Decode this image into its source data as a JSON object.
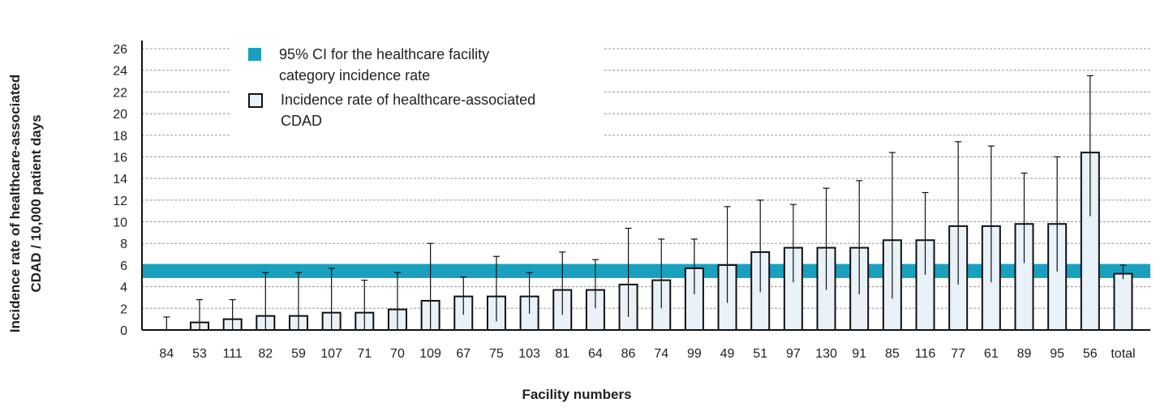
{
  "chart_data": {
    "type": "bar",
    "xlabel": "Facility numbers",
    "ylabel": [
      "Incidence rate of healthcare-associated",
      "CDAD / 10,000 patient days"
    ],
    "categories": [
      "84",
      "53",
      "111",
      "82",
      "59",
      "107",
      "71",
      "70",
      "109",
      "67",
      "75",
      "103",
      "81",
      "64",
      "86",
      "74",
      "99",
      "49",
      "51",
      "97",
      "130",
      "91",
      "85",
      "116",
      "77",
      "61",
      "89",
      "95",
      "56",
      "total"
    ],
    "series": [
      {
        "name": "Incidence rate of healthcare-associated CDAD",
        "color": "#e9f2f9",
        "values": [
          0,
          0.7,
          1.0,
          1.3,
          1.3,
          1.6,
          1.6,
          1.9,
          2.7,
          3.1,
          3.1,
          3.1,
          3.7,
          3.7,
          4.2,
          4.6,
          5.7,
          6.0,
          7.2,
          7.6,
          7.6,
          7.6,
          8.3,
          8.3,
          9.6,
          9.6,
          9.8,
          9.8,
          16.4,
          5.2
        ],
        "ci_low": [
          0,
          0,
          0,
          0,
          0,
          0,
          0,
          0,
          0,
          1.4,
          0.8,
          1.5,
          1.4,
          2.0,
          1.2,
          2.0,
          3.3,
          2.5,
          3.5,
          4.4,
          3.7,
          3.3,
          2.9,
          5.1,
          4.2,
          4.4,
          6.2,
          5.4,
          10.5,
          4.7
        ],
        "ci_high": [
          1.2,
          2.8,
          2.8,
          5.3,
          5.3,
          5.7,
          4.6,
          5.3,
          8.0,
          4.9,
          6.8,
          5.3,
          7.2,
          6.5,
          9.4,
          8.4,
          8.4,
          11.4,
          12.0,
          11.6,
          13.1,
          13.8,
          16.4,
          12.7,
          17.4,
          17.0,
          14.5,
          16.0,
          23.5,
          6.0
        ]
      }
    ],
    "band": {
      "name": "95% CI for the healthcare facility category incidence rate",
      "color": "#1aa0bf",
      "range": [
        4.8,
        6.1
      ]
    },
    "ylim": [
      0,
      26
    ],
    "yticks": [
      0,
      2,
      4,
      6,
      8,
      10,
      12,
      14,
      16,
      18,
      20,
      22,
      24,
      26
    ],
    "grid": true
  }
}
